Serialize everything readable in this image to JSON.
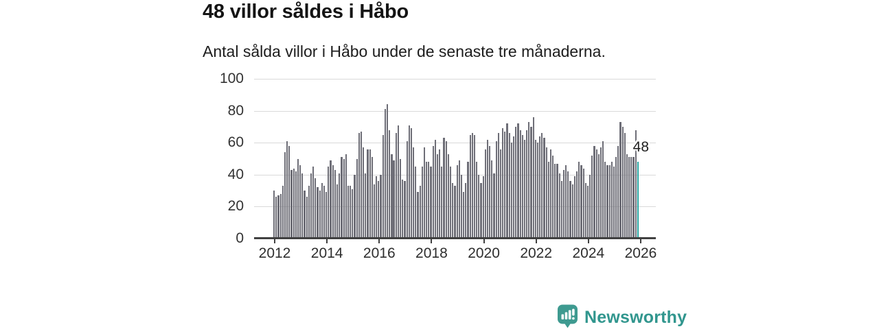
{
  "header": {
    "title": "48 villor såldes i Håbo",
    "subtitle": "Antal sålda villor i Håbo under de senaste tre månaderna."
  },
  "annotation": {
    "label": "48"
  },
  "branding": {
    "wordmark": "Newsworthy",
    "icon": "bar-chart-speech-bubble-icon",
    "icon_color": "#3e9a90",
    "text_color": "#31968e"
  },
  "colors": {
    "bar": "#6e6e77",
    "highlight_bar": "#27a5a1",
    "gridline": "#d9d9d9",
    "axis": "#404040",
    "tick_text": "#333333"
  },
  "chart_data": {
    "type": "bar",
    "title": "48 villor såldes i Håbo",
    "subtitle": "Antal sålda villor i Håbo under de senaste tre månaderna.",
    "unit": "sålda villor (rullande tre månader)",
    "frequency": "monthly",
    "x_start": "2012-01",
    "x_end": "2025-12",
    "x_tick_labels": [
      "2012",
      "2014",
      "2016",
      "2018",
      "2020",
      "2022",
      "2024",
      "2026"
    ],
    "y_ticks": [
      0,
      20,
      40,
      60,
      80,
      100
    ],
    "ylim": [
      0,
      100
    ],
    "grid": true,
    "legend": false,
    "highlight_last": true,
    "highlight_value": 48,
    "highlight_label": "48",
    "values": [
      30,
      26,
      27,
      28,
      33,
      54,
      61,
      58,
      43,
      44,
      42,
      50,
      46,
      41,
      30,
      26,
      33,
      41,
      45,
      38,
      32,
      30,
      35,
      33,
      29,
      45,
      49,
      46,
      43,
      34,
      41,
      51,
      50,
      53,
      33,
      33,
      31,
      40,
      50,
      66,
      67,
      57,
      41,
      56,
      56,
      51,
      34,
      39,
      36,
      40,
      65,
      81,
      84,
      68,
      53,
      49,
      66,
      71,
      50,
      37,
      36,
      61,
      71,
      69,
      57,
      45,
      29,
      33,
      45,
      57,
      48,
      48,
      45,
      58,
      62,
      53,
      56,
      45,
      63,
      61,
      53,
      45,
      35,
      33,
      46,
      49,
      40,
      29,
      35,
      48,
      65,
      66,
      65,
      48,
      40,
      35,
      39,
      56,
      62,
      58,
      49,
      41,
      61,
      66,
      56,
      69,
      67,
      72,
      66,
      60,
      64,
      70,
      72,
      68,
      65,
      62,
      68,
      73,
      70,
      76,
      62,
      60,
      64,
      66,
      63,
      57,
      48,
      56,
      52,
      47,
      47,
      41,
      36,
      43,
      46,
      42,
      36,
      34,
      39,
      42,
      48,
      46,
      44,
      35,
      33,
      40,
      52,
      58,
      56,
      53,
      57,
      61,
      48,
      46,
      46,
      48,
      45,
      51,
      58,
      73,
      70,
      66,
      53,
      51,
      51,
      51,
      68,
      48
    ]
  }
}
